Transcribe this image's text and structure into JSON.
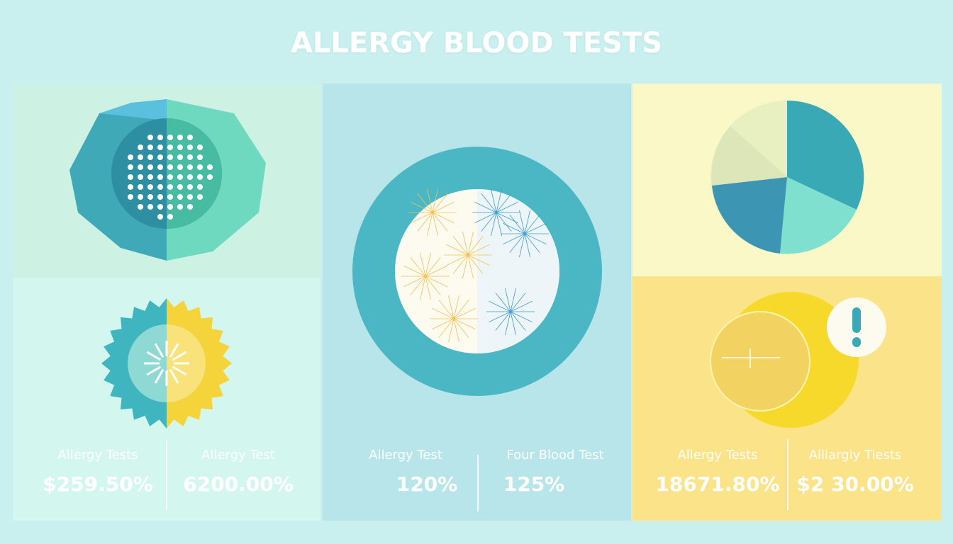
{
  "title": "ALLERGY BLOOD TESTS",
  "colors": {
    "background": "#c9f0ee",
    "teal": "#3fa9b8",
    "mint": "#6fd9c0",
    "yellow": "#f5d33a",
    "pale_yellow": "#fbf8c8"
  },
  "stats": [
    {
      "label": "Allergy Tests",
      "value": "$259.50%"
    },
    {
      "label": "Allergy Test",
      "value": "6200.00%"
    },
    {
      "label": "Allergy Test",
      "value": "120%"
    },
    {
      "label": "Four Blood Test",
      "value": "125%"
    },
    {
      "label": "Allergy Tests",
      "value": "18671.80%"
    },
    {
      "label": "Alliargiy Tiests",
      "value": "$2 30.00%"
    }
  ],
  "icons": [
    "dome-dots-icon",
    "sun-gear-icon",
    "blood-cell-circle-icon",
    "pie-chart-icon",
    "overlapping-circles-icon",
    "exclamation-icon"
  ]
}
